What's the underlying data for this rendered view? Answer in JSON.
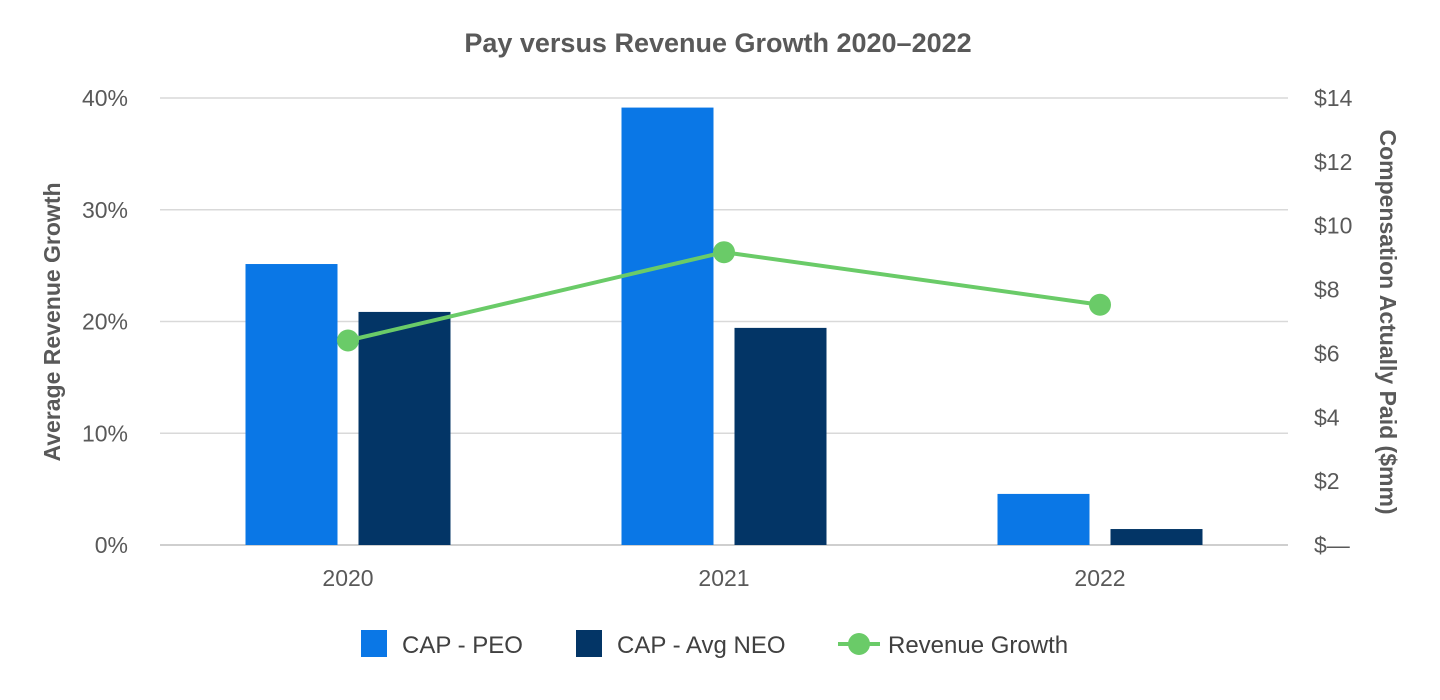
{
  "chart_data": {
    "type": "bar+line",
    "title": "Pay versus Revenue Growth 2020–2022",
    "categories": [
      "2020",
      "2021",
      "2022"
    ],
    "ylabel_left": "Average Revenue Growth",
    "ylabel_right": "Compensation Actually Paid ($mm)",
    "left_axis": {
      "range": [
        0,
        40
      ],
      "ticks": [
        0,
        10,
        20,
        30,
        40
      ],
      "tick_labels": [
        "0%",
        "10%",
        "20%",
        "30%",
        "40%"
      ]
    },
    "right_axis": {
      "range": [
        0,
        14
      ],
      "ticks": [
        0,
        2,
        4,
        6,
        8,
        10,
        12,
        14
      ],
      "tick_labels": [
        "$—",
        "$2",
        "$4",
        "$6",
        "$8",
        "$10",
        "$12",
        "$14"
      ]
    },
    "bar_series": [
      {
        "name": "CAP - PEO",
        "axis": "right",
        "color": "#0a77e6",
        "values": [
          8.8,
          13.7,
          1.6
        ]
      },
      {
        "name": "CAP - Avg NEO",
        "axis": "right",
        "color": "#033566",
        "values": [
          7.3,
          6.8,
          0.5
        ]
      }
    ],
    "line_series": [
      {
        "name": "Revenue Growth",
        "axis": "left",
        "color": "#6acb68",
        "values": [
          18.3,
          26.2,
          21.5
        ]
      }
    ],
    "legend": [
      "CAP - PEO",
      "CAP - Avg NEO",
      "Revenue Growth"
    ],
    "legend_position": "bottom",
    "grid": true
  }
}
